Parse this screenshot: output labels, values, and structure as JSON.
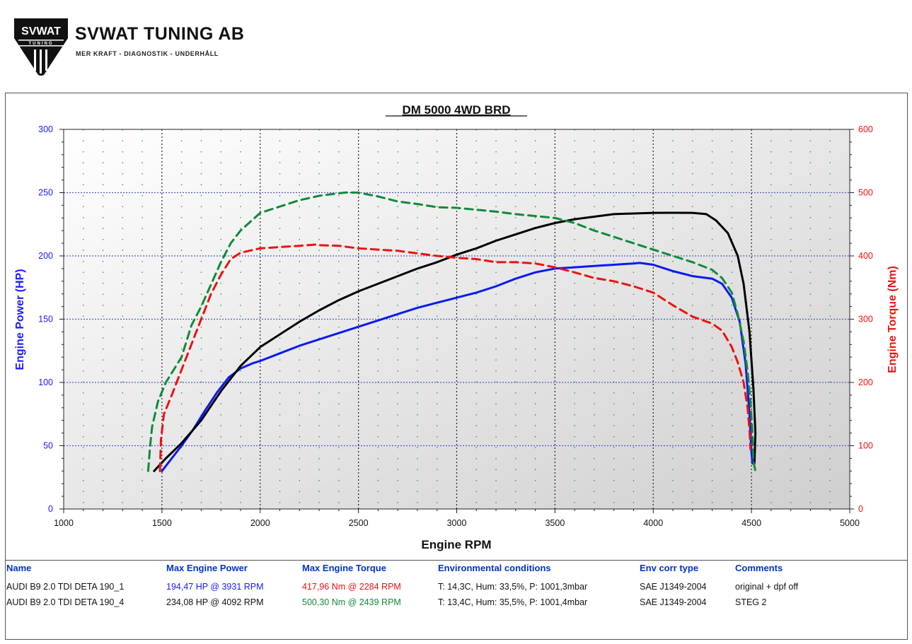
{
  "brand": {
    "name": "SVWAT TUNING AB",
    "tagline": "MER KRAFT - DIAGNOSTIK - UNDERHÅLL",
    "logo_text_top": "SVWAT",
    "logo_text_bottom": "TUNING"
  },
  "chart_data": {
    "type": "line",
    "title": "DM 5000 4WD BRD",
    "xlabel": "Engine RPM",
    "ylabel": "Engine Power (HP)",
    "y2label": "Engine Torque (Nm)",
    "xlim": [
      1000,
      5000
    ],
    "ylim": [
      0,
      300
    ],
    "y2lim": [
      0,
      600
    ],
    "x_ticks": [
      1000,
      1500,
      2000,
      2500,
      3000,
      3500,
      4000,
      4500,
      5000
    ],
    "y_ticks": [
      0,
      50,
      100,
      150,
      200,
      250,
      300
    ],
    "y2_ticks": [
      0,
      100,
      200,
      300,
      400,
      500,
      600
    ],
    "grid": true,
    "colors": {
      "axis_left": "#1a1aff",
      "axis_right": "#ee1111",
      "grid_major": "#5555cc",
      "grid_minor": "#00aa00"
    },
    "series": [
      {
        "axis": "left",
        "color": "#0a19f0",
        "dash": false,
        "points": [
          [
            1500,
            30
          ],
          [
            1530,
            36
          ],
          [
            1600,
            50
          ],
          [
            1660,
            63
          ],
          [
            1720,
            78
          ],
          [
            1780,
            92
          ],
          [
            1840,
            104
          ],
          [
            1900,
            111
          ],
          [
            1960,
            115
          ],
          [
            2000,
            117
          ],
          [
            2100,
            123
          ],
          [
            2200,
            129
          ],
          [
            2300,
            134
          ],
          [
            2400,
            139
          ],
          [
            2500,
            144
          ],
          [
            2600,
            149
          ],
          [
            2700,
            154
          ],
          [
            2800,
            159
          ],
          [
            2900,
            163
          ],
          [
            3000,
            167
          ],
          [
            3100,
            171
          ],
          [
            3200,
            176
          ],
          [
            3300,
            182
          ],
          [
            3400,
            187
          ],
          [
            3500,
            190
          ],
          [
            3600,
            191
          ],
          [
            3700,
            192
          ],
          [
            3800,
            193
          ],
          [
            3900,
            194
          ],
          [
            3931,
            194.47
          ],
          [
            4000,
            193
          ],
          [
            4100,
            188
          ],
          [
            4200,
            184
          ],
          [
            4300,
            182
          ],
          [
            4350,
            178
          ],
          [
            4400,
            167
          ],
          [
            4440,
            148
          ],
          [
            4470,
            115
          ],
          [
            4490,
            75
          ],
          [
            4500,
            45
          ],
          [
            4505,
            36
          ]
        ]
      },
      {
        "axis": "left",
        "color": "#000000",
        "dash": false,
        "points": [
          [
            1460,
            30
          ],
          [
            1520,
            40
          ],
          [
            1600,
            52
          ],
          [
            1700,
            70
          ],
          [
            1800,
            93
          ],
          [
            1900,
            113
          ],
          [
            2000,
            128
          ],
          [
            2100,
            138
          ],
          [
            2200,
            148
          ],
          [
            2300,
            157
          ],
          [
            2400,
            165
          ],
          [
            2500,
            172
          ],
          [
            2600,
            178
          ],
          [
            2700,
            184
          ],
          [
            2800,
            190
          ],
          [
            2900,
            195
          ],
          [
            3000,
            201
          ],
          [
            3100,
            206
          ],
          [
            3200,
            212
          ],
          [
            3300,
            217
          ],
          [
            3400,
            222
          ],
          [
            3500,
            226
          ],
          [
            3600,
            229
          ],
          [
            3700,
            231
          ],
          [
            3800,
            233
          ],
          [
            3900,
            233.5
          ],
          [
            4000,
            234
          ],
          [
            4092,
            234.08
          ],
          [
            4200,
            234
          ],
          [
            4270,
            233
          ],
          [
            4320,
            228
          ],
          [
            4380,
            218
          ],
          [
            4430,
            200
          ],
          [
            4460,
            178
          ],
          [
            4490,
            140
          ],
          [
            4510,
            95
          ],
          [
            4520,
            60
          ],
          [
            4515,
            36
          ]
        ]
      },
      {
        "axis": "right",
        "color": "#ee1111",
        "dash": true,
        "points": [
          [
            1490,
            60
          ],
          [
            1495,
            110
          ],
          [
            1510,
            150
          ],
          [
            1550,
            180
          ],
          [
            1600,
            220
          ],
          [
            1650,
            260
          ],
          [
            1700,
            300
          ],
          [
            1750,
            340
          ],
          [
            1800,
            370
          ],
          [
            1850,
            395
          ],
          [
            1900,
            405
          ],
          [
            2000,
            412
          ],
          [
            2100,
            414
          ],
          [
            2200,
            416
          ],
          [
            2284,
            417.96
          ],
          [
            2300,
            417
          ],
          [
            2400,
            416
          ],
          [
            2500,
            412
          ],
          [
            2600,
            410
          ],
          [
            2700,
            408
          ],
          [
            2800,
            404
          ],
          [
            2900,
            400
          ],
          [
            3000,
            397
          ],
          [
            3100,
            395
          ],
          [
            3200,
            390
          ],
          [
            3300,
            390
          ],
          [
            3400,
            388
          ],
          [
            3500,
            382
          ],
          [
            3600,
            374
          ],
          [
            3700,
            365
          ],
          [
            3800,
            360
          ],
          [
            3900,
            352
          ],
          [
            4000,
            342
          ],
          [
            4100,
            322
          ],
          [
            4200,
            304
          ],
          [
            4300,
            293
          ],
          [
            4350,
            282
          ],
          [
            4400,
            256
          ],
          [
            4430,
            232
          ],
          [
            4460,
            200
          ],
          [
            4480,
            160
          ],
          [
            4490,
            125
          ],
          [
            4495,
            95
          ]
        ]
      },
      {
        "axis": "right",
        "color": "#108a3a",
        "dash": true,
        "points": [
          [
            1430,
            60
          ],
          [
            1440,
            100
          ],
          [
            1450,
            130
          ],
          [
            1480,
            170
          ],
          [
            1520,
            200
          ],
          [
            1600,
            240
          ],
          [
            1650,
            290
          ],
          [
            1700,
            320
          ],
          [
            1750,
            355
          ],
          [
            1800,
            390
          ],
          [
            1850,
            420
          ],
          [
            1900,
            440
          ],
          [
            2000,
            468
          ],
          [
            2100,
            478
          ],
          [
            2200,
            488
          ],
          [
            2300,
            495
          ],
          [
            2400,
            499
          ],
          [
            2439,
            500.3
          ],
          [
            2500,
            500
          ],
          [
            2600,
            494
          ],
          [
            2700,
            486
          ],
          [
            2800,
            482
          ],
          [
            2900,
            477
          ],
          [
            3000,
            476
          ],
          [
            3100,
            473
          ],
          [
            3200,
            470
          ],
          [
            3300,
            466
          ],
          [
            3400,
            463
          ],
          [
            3500,
            460
          ],
          [
            3600,
            452
          ],
          [
            3700,
            440
          ],
          [
            3800,
            430
          ],
          [
            3900,
            420
          ],
          [
            4000,
            410
          ],
          [
            4100,
            400
          ],
          [
            4200,
            390
          ],
          [
            4300,
            378
          ],
          [
            4350,
            365
          ],
          [
            4400,
            342
          ],
          [
            4430,
            308
          ],
          [
            4460,
            265
          ],
          [
            4480,
            218
          ],
          [
            4495,
            170
          ],
          [
            4505,
            120
          ],
          [
            4510,
            75
          ],
          [
            4520,
            60
          ]
        ]
      }
    ]
  },
  "table": {
    "headers": [
      "Name",
      "Max Engine Power",
      "Max Engine Torque",
      "Environmental conditions",
      "Env corr type",
      "Comments"
    ],
    "rows": [
      {
        "name": "AUDI B9 2.0 TDI DETA 190_1",
        "power": "194,47 HP @ 3931 RPM",
        "torque": "417,96 Nm @ 2284 RPM",
        "env": "T: 14,3C, Hum: 33,5%, P: 1001,3mbar",
        "corr": "SAE J1349-2004",
        "comment": "original + dpf off",
        "power_color": "#1a1aff",
        "torque_color": "#ee1111"
      },
      {
        "name": "AUDI B9 2.0 TDI DETA 190_4",
        "power": "234,08 HP @ 4092 RPM",
        "torque": "500,30 Nm @ 2439 RPM",
        "env": "T: 13,4C, Hum: 35,5%, P: 1001,4mbar",
        "corr": "SAE J1349-2004",
        "comment": "STEG 2",
        "power_color": "#000000",
        "torque_color": "#108a3a"
      }
    ]
  }
}
